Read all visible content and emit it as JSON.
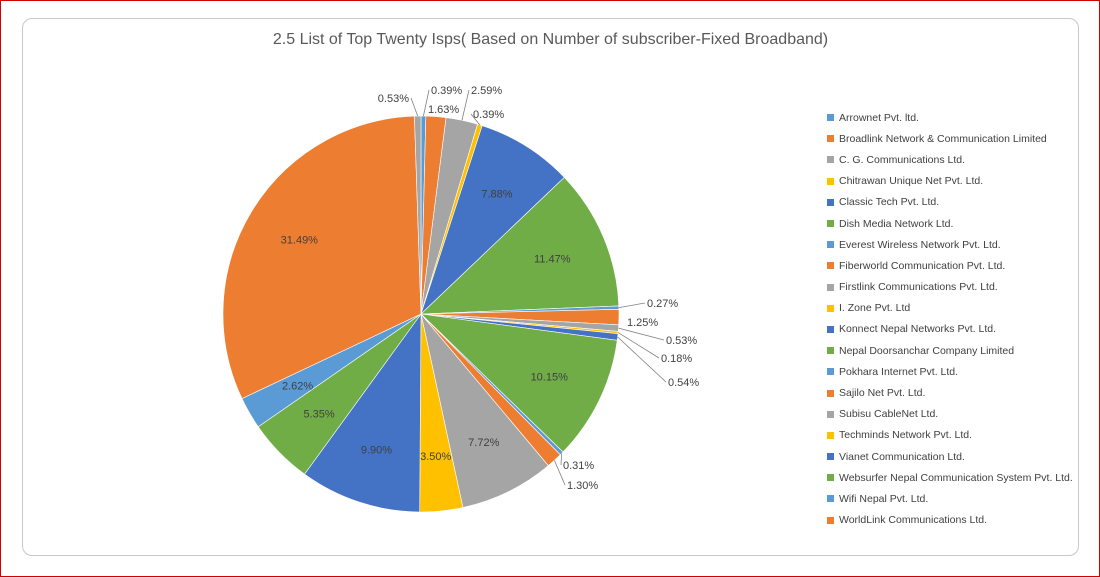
{
  "chart_data": {
    "type": "pie",
    "title": "2.5 List of Top Twenty Isps( Based on Number of subscriber-Fixed Broadband)",
    "legend_position": "right",
    "slices": [
      {
        "name": "Arrownet Pvt. ltd.",
        "value": 0.39,
        "label": "0.39%",
        "color": "#5B9BD5"
      },
      {
        "name": "Broadlink Network & Communication Limited",
        "value": 1.63,
        "label": "1.63%",
        "color": "#ED7D31"
      },
      {
        "name": "C. G. Communications Ltd.",
        "value": 2.59,
        "label": "2.59%",
        "color": "#A5A5A5"
      },
      {
        "name": "Chitrawan Unique Net Pvt. Ltd.",
        "value": 0.39,
        "label": "0.39%",
        "color": "#FFC000"
      },
      {
        "name": "Classic Tech Pvt. Ltd.",
        "value": 7.88,
        "label": "7.88%",
        "color": "#4472C4"
      },
      {
        "name": "Dish Media Network Ltd.",
        "value": 11.47,
        "label": "11.47%",
        "color": "#70AD47"
      },
      {
        "name": "Everest Wireless Network Pvt. Ltd.",
        "value": 0.27,
        "label": "0.27%",
        "color": "#5B9BD5"
      },
      {
        "name": "Fiberworld Communication Pvt. Ltd.",
        "value": 1.25,
        "label": "1.25%",
        "color": "#ED7D31"
      },
      {
        "name": "Firstlink Communications Pvt. Ltd.",
        "value": 0.53,
        "label": "0.53%",
        "color": "#A5A5A5"
      },
      {
        "name": "I. Zone Pvt. Ltd",
        "value": 0.18,
        "label": "0.18%",
        "color": "#FFC000"
      },
      {
        "name": "Konnect Nepal Networks Pvt. Ltd.",
        "value": 0.54,
        "label": "0.54%",
        "color": "#4472C4"
      },
      {
        "name": "Nepal Doorsanchar Company Limited",
        "value": 10.15,
        "label": "10.15%",
        "color": "#70AD47"
      },
      {
        "name": "Pokhara Internet Pvt. Ltd.",
        "value": 0.31,
        "label": "0.31%",
        "color": "#5B9BD5"
      },
      {
        "name": "Sajilo Net Pvt. Ltd.",
        "value": 1.3,
        "label": "1.30%",
        "color": "#ED7D31"
      },
      {
        "name": "Subisu CableNet Ltd.",
        "value": 7.72,
        "label": "7.72%",
        "color": "#A5A5A5"
      },
      {
        "name": "Techminds Network Pvt. Ltd.",
        "value": 3.5,
        "label": "3.50%",
        "color": "#FFC000"
      },
      {
        "name": "Vianet Communication Ltd.",
        "value": 9.9,
        "label": "9.90%",
        "color": "#4472C4"
      },
      {
        "name": "Websurfer Nepal Communication System Pvt. Ltd.",
        "value": 5.35,
        "label": "5.35%",
        "color": "#70AD47"
      },
      {
        "name": "Wifi Nepal Pvt. Ltd.",
        "value": 2.62,
        "label": "2.62%",
        "color": "#5B9BD5"
      },
      {
        "name": "WorldLink Communications Ltd.",
        "value": 31.49,
        "label": "31.49%",
        "color": "#ED7D31"
      },
      {
        "value": 0.53,
        "label": "0.53%",
        "color": "#A5A5A5"
      }
    ]
  }
}
